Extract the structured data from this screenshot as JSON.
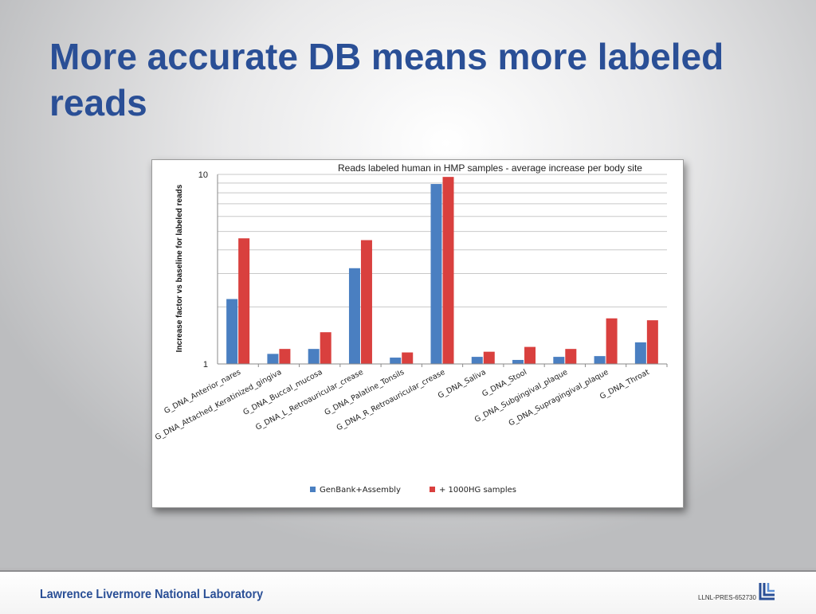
{
  "slide": {
    "title": "More accurate DB means more labeled reads"
  },
  "chart_data": {
    "type": "bar",
    "title": "Reads labeled human in HMP samples - average increase per body site",
    "xlabel": "",
    "ylabel": "Increase factor vs baseline for labeled reads",
    "yscale": "log",
    "ylim": [
      1,
      10
    ],
    "yticks": [
      "1",
      "10"
    ],
    "grid": true,
    "legend_position": "bottom",
    "categories": [
      "G_DNA_Anterior_nares",
      "G_DNA_Attached_Keratinized_gingiva",
      "G_DNA_Buccal_mucosa",
      "G_DNA_L_Retroauricular_crease",
      "G_DNA_Palatine_Tonsils",
      "G_DNA_R_Retroauricular_crease",
      "G_DNA_Saliva",
      "G_DNA_Stool",
      "G_DNA_Subgingival_plaque",
      "G_DNA_Supragingival_plaque",
      "G_DNA_Throat"
    ],
    "series": [
      {
        "name": "GenBank+Assembly",
        "color": "#4a7fc1",
        "values": [
          2.2,
          1.13,
          1.2,
          3.2,
          1.08,
          8.9,
          1.09,
          1.05,
          1.09,
          1.1,
          1.3
        ]
      },
      {
        "name": "+ 1000HG samples",
        "color": "#d9403e",
        "values": [
          4.6,
          1.2,
          1.47,
          4.5,
          1.15,
          9.7,
          1.16,
          1.23,
          1.2,
          1.74,
          1.7
        ]
      }
    ]
  },
  "footer": {
    "lab_name": "Lawrence Livermore National Laboratory",
    "doc_id": "LLNL-PRES-652730",
    "logo_icon": "llnl-logo-icon"
  }
}
